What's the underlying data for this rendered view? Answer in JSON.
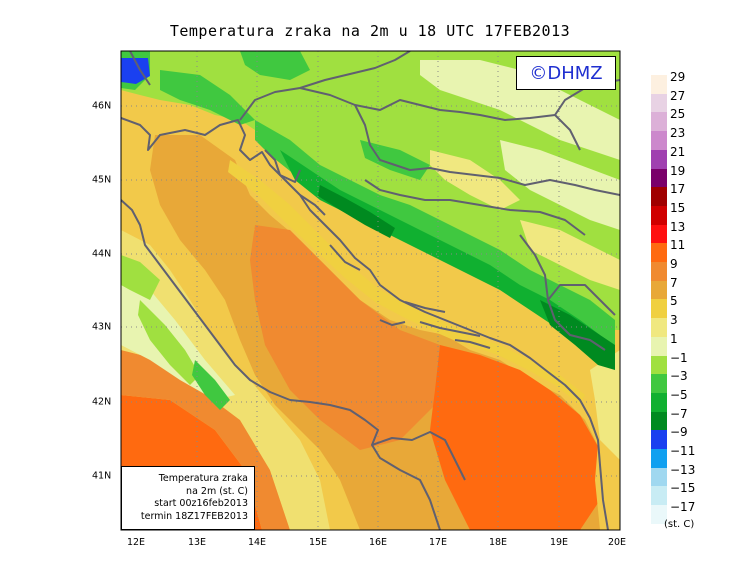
{
  "title": "Temperatura zraka na 2m u 18 UTC 17FEB2013",
  "logo": "©DHMZ",
  "info": {
    "line1": "Temperatura zraka",
    "line2": "na 2m (st. C)",
    "line3": "start 00z16feb2013",
    "line4": "termin 18Z17FEB2013"
  },
  "axes": {
    "x_ticks": [
      "12E",
      "13E",
      "14E",
      "15E",
      "16E",
      "17E",
      "18E",
      "19E",
      "20E"
    ],
    "y_ticks": [
      "46N",
      "45N",
      "44N",
      "43N",
      "42N",
      "41N"
    ]
  },
  "legend": {
    "unit": "(st. C)",
    "labels": [
      "29",
      "27",
      "25",
      "23",
      "21",
      "19",
      "17",
      "15",
      "13",
      "11",
      "9",
      "7",
      "5",
      "3",
      "1",
      "−1",
      "−3",
      "−5",
      "−7",
      "−9",
      "−11",
      "−13",
      "−15",
      "−17"
    ],
    "colors": [
      "#fdf0e0",
      "#e8d2e4",
      "#dcb0d8",
      "#cc88cc",
      "#a040b0",
      "#7a006a",
      "#a00000",
      "#d00000",
      "#ff1010",
      "#ff6a10",
      "#f08a30",
      "#e8a838",
      "#f0d040",
      "#f0e880",
      "#e8f4b0",
      "#a0e040",
      "#40c840",
      "#10b030",
      "#008a20",
      "#1a40f0",
      "#10a0f0",
      "#a0d8f0",
      "#c8ecf4",
      "#eaf8fa"
    ]
  }
}
